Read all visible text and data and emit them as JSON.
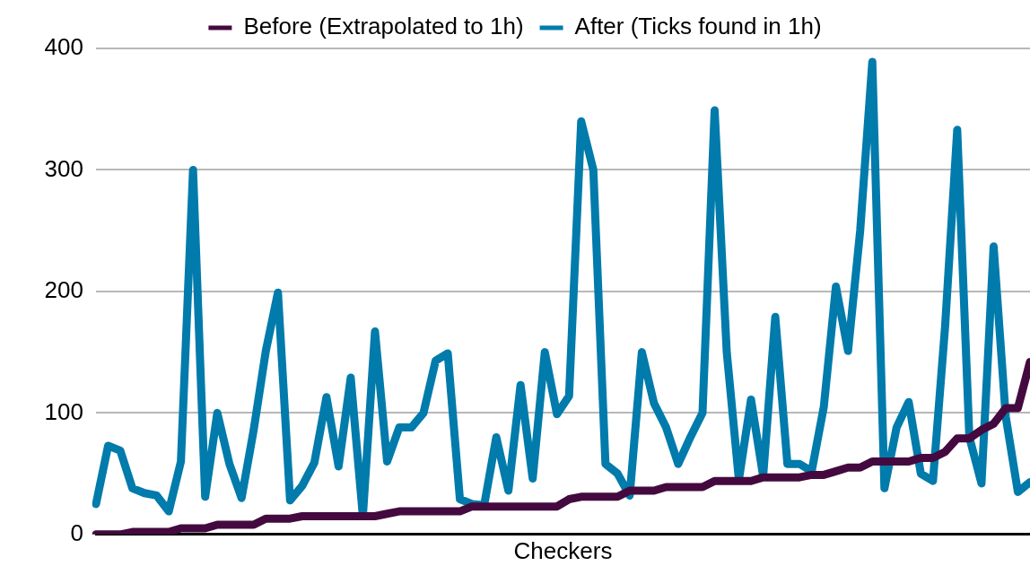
{
  "chart_data": {
    "type": "line",
    "xlabel": "Checkers",
    "categories": [
      null,
      null,
      null,
      null,
      null,
      null,
      null,
      null,
      null,
      null,
      null,
      null,
      null,
      null,
      null,
      null,
      null,
      null,
      null,
      null,
      null,
      null,
      null,
      null,
      null,
      null,
      null,
      null,
      null,
      null,
      null,
      null,
      null,
      null,
      null,
      null,
      null,
      null,
      null,
      null,
      null,
      null,
      null,
      null,
      null,
      null,
      null,
      null,
      null,
      null,
      null,
      null,
      null,
      null,
      null,
      null,
      null,
      null,
      null,
      null,
      null,
      null,
      null,
      null,
      null,
      null,
      null,
      null,
      null,
      null,
      null,
      null,
      null,
      null,
      null,
      null,
      null,
      null
    ],
    "series": [
      {
        "name": "Before (Extrapolated to 1h)",
        "color": "#440a3f",
        "values": [
          0,
          0,
          0,
          2,
          2,
          2,
          2,
          5,
          5,
          5,
          8,
          8,
          8,
          8,
          13,
          13,
          13,
          15,
          15,
          15,
          15,
          15,
          15,
          15,
          17,
          19,
          19,
          19,
          19,
          19,
          19,
          23,
          23,
          23,
          23,
          23,
          23,
          23,
          23,
          29,
          31,
          31,
          31,
          31,
          36,
          36,
          36,
          39,
          39,
          39,
          39,
          44,
          44,
          44,
          44,
          47,
          47,
          47,
          47,
          49,
          49,
          52,
          55,
          55,
          60,
          60,
          60,
          60,
          63,
          63,
          68,
          79,
          79,
          86,
          91,
          104,
          104,
          142
        ]
      },
      {
        "name": "After (Ticks found in 1h)",
        "color": "#017bab",
        "values": [
          25,
          73,
          69,
          38,
          34,
          32,
          19,
          60,
          300,
          31,
          100,
          58,
          30,
          86,
          151,
          199,
          28,
          40,
          59,
          113,
          56,
          129,
          15,
          167,
          60,
          88,
          88,
          100,
          143,
          149,
          29,
          25,
          24,
          80,
          36,
          123,
          46,
          150,
          99,
          114,
          340,
          300,
          58,
          50,
          32,
          150,
          108,
          88,
          58,
          80,
          100,
          349,
          150,
          45,
          111,
          48,
          179,
          58,
          58,
          52,
          105,
          204,
          151,
          250,
          389,
          38,
          88,
          109,
          50,
          44,
          171,
          333,
          80,
          42,
          237,
          97,
          35,
          43
        ]
      }
    ],
    "ylim": [
      0,
      400
    ],
    "yticks": [
      0,
      100,
      200,
      300,
      400
    ],
    "grid": "y",
    "legend": "top",
    "tick_labels": "y",
    "marker": "none",
    "line_style": "solid"
  }
}
